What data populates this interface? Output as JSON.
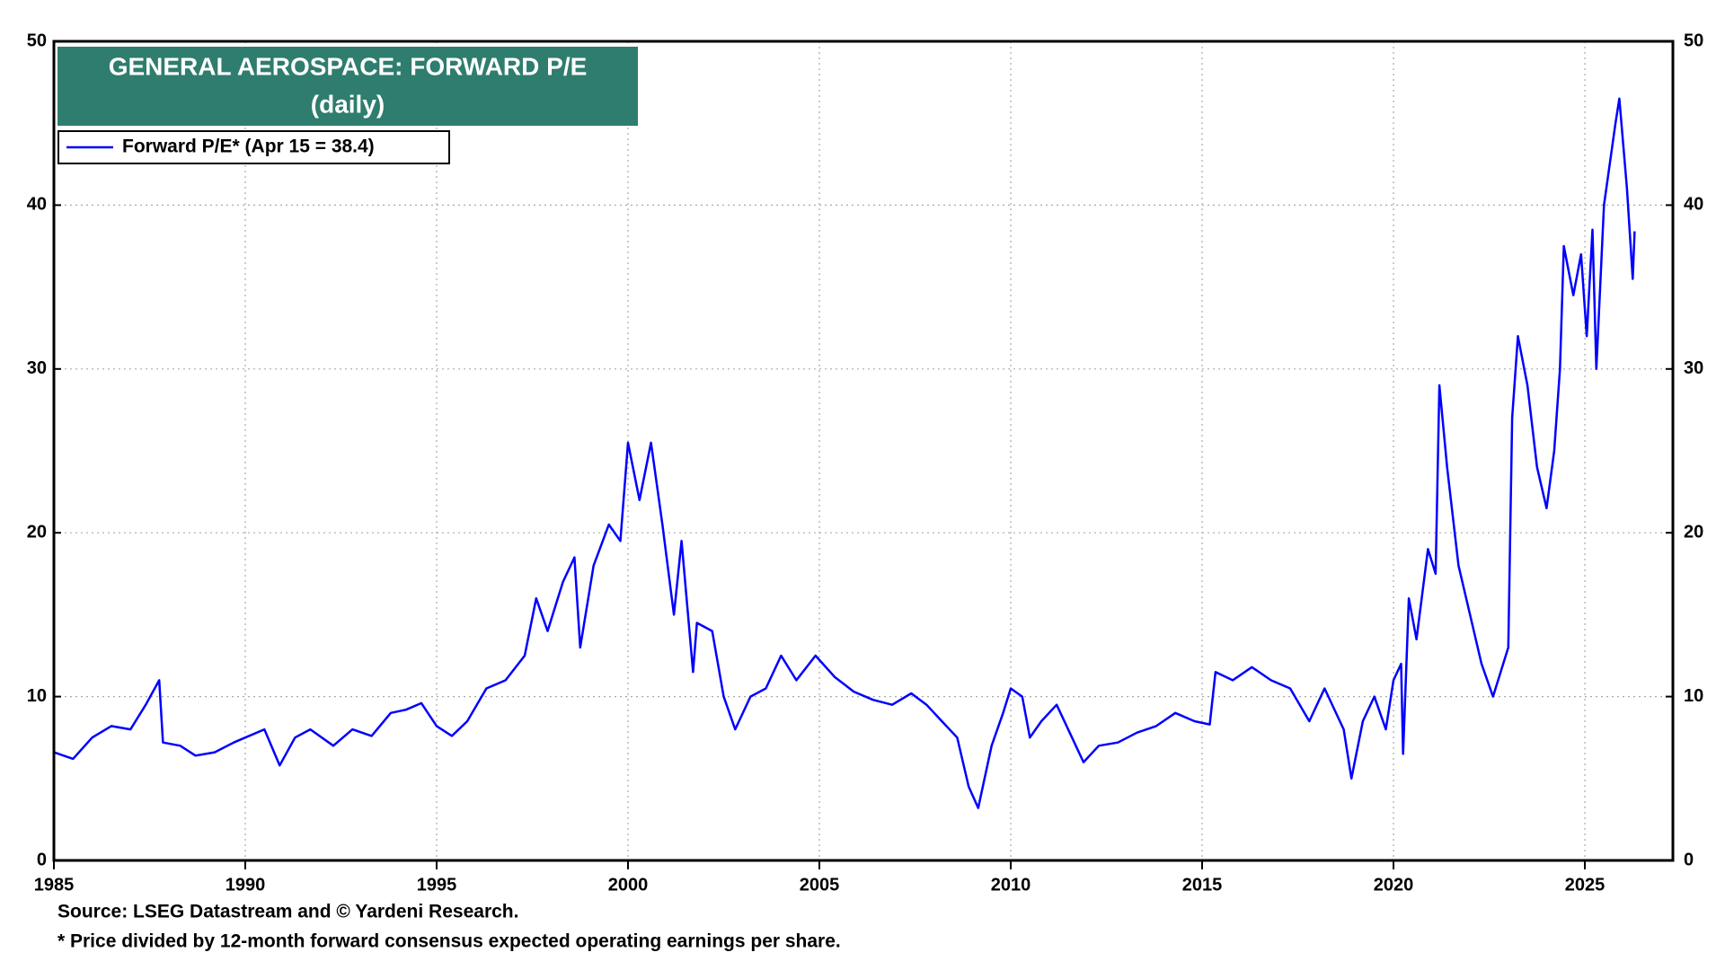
{
  "chart_data": {
    "type": "line",
    "title": "GENERAL AEROSPACE: FORWARD P/E",
    "subtitle": "(daily)",
    "notes": [
      "Source: LSEG Datastream and © Yardeni Research.",
      "* Price divided by 12-month forward consensus expected operating earnings per share."
    ],
    "x": [
      1985.0,
      1985.5,
      1986.0,
      1986.5,
      1987.0,
      1987.4,
      1987.75,
      1987.85,
      1988.3,
      1988.7,
      1989.2,
      1989.7,
      1990.0,
      1990.5,
      1990.9,
      1991.3,
      1991.7,
      1992.3,
      1992.8,
      1993.3,
      1993.8,
      1994.2,
      1994.6,
      1995.0,
      1995.4,
      1995.8,
      1996.3,
      1996.8,
      1997.3,
      1997.6,
      1997.9,
      1998.3,
      1998.6,
      1998.75,
      1999.1,
      1999.5,
      1999.8,
      2000.0,
      2000.3,
      2000.6,
      2000.9,
      2001.2,
      2001.4,
      2001.7,
      2001.8,
      2002.2,
      2002.5,
      2002.8,
      2003.2,
      2003.6,
      2004.0,
      2004.4,
      2004.9,
      2005.4,
      2005.9,
      2006.4,
      2006.9,
      2007.4,
      2007.8,
      2008.2,
      2008.6,
      2008.9,
      2009.15,
      2009.5,
      2009.8,
      2010.0,
      2010.3,
      2010.5,
      2010.8,
      2011.2,
      2011.6,
      2011.9,
      2012.3,
      2012.8,
      2013.3,
      2013.8,
      2014.3,
      2014.8,
      2015.2,
      2015.35,
      2015.8,
      2016.3,
      2016.8,
      2017.3,
      2017.8,
      2018.2,
      2018.7,
      2018.9,
      2019.2,
      2019.5,
      2019.8,
      2020.0,
      2020.2,
      2020.25,
      2020.4,
      2020.6,
      2020.9,
      2021.1,
      2021.2,
      2021.4,
      2021.7,
      2022.0,
      2022.3,
      2022.6,
      2022.8,
      2023.0,
      2023.1,
      2023.25,
      2023.5,
      2023.75,
      2024.0,
      2024.2,
      2024.35,
      2024.45,
      2024.7,
      2024.9,
      2025.05,
      2025.2,
      2025.3,
      2025.5,
      2025.8,
      2025.9,
      2026.1,
      2026.25,
      2026.3
    ],
    "series": [
      {
        "name": "Forward P/E* (Apr 15 = 38.4)",
        "color": "#0000ff",
        "values": [
          6.6,
          6.2,
          7.5,
          8.2,
          8.0,
          9.5,
          11.0,
          7.2,
          7.0,
          6.4,
          6.6,
          7.2,
          7.5,
          8.0,
          5.8,
          7.5,
          8.0,
          7.0,
          8.0,
          7.6,
          9.0,
          9.2,
          9.6,
          8.2,
          7.6,
          8.5,
          10.5,
          11.0,
          12.5,
          16.0,
          14.0,
          17.0,
          18.5,
          13.0,
          18.0,
          20.5,
          19.5,
          25.5,
          22.0,
          25.5,
          20.5,
          15.0,
          19.5,
          11.5,
          14.5,
          14.0,
          10.0,
          8.0,
          10.0,
          10.5,
          12.5,
          11.0,
          12.5,
          11.2,
          10.3,
          9.8,
          9.5,
          10.2,
          9.5,
          8.5,
          7.5,
          4.5,
          3.2,
          7.0,
          9.0,
          10.5,
          10.0,
          7.5,
          8.5,
          9.5,
          7.5,
          6.0,
          7.0,
          7.2,
          7.8,
          8.2,
          9.0,
          8.5,
          8.3,
          11.5,
          11.0,
          11.8,
          11.0,
          10.5,
          8.5,
          10.5,
          8.0,
          5.0,
          8.5,
          10.0,
          8.0,
          11.0,
          12.0,
          6.5,
          16.0,
          13.5,
          19.0,
          17.5,
          29.0,
          24.0,
          18.0,
          15.0,
          12.0,
          10.0,
          11.5,
          13.0,
          27.0,
          32.0,
          29.0,
          24.0,
          21.5,
          25.0,
          30.0,
          37.5,
          34.5,
          37.0,
          32.0,
          38.5,
          30.0,
          40.0,
          45.0,
          46.5,
          41.0,
          35.5,
          38.4
        ]
      }
    ],
    "xlim": [
      1985,
      2027.3
    ],
    "xticks": [
      1985,
      1990,
      1995,
      2000,
      2005,
      2010,
      2015,
      2020,
      2025
    ],
    "ylim": [
      0,
      50
    ],
    "yticks": [
      0,
      10,
      20,
      30,
      40,
      50
    ],
    "y2lim": [
      0,
      50
    ],
    "y2ticks": [
      0,
      10,
      20,
      30,
      40,
      50
    ],
    "grid": true,
    "title_color": "#2e7d6e"
  }
}
